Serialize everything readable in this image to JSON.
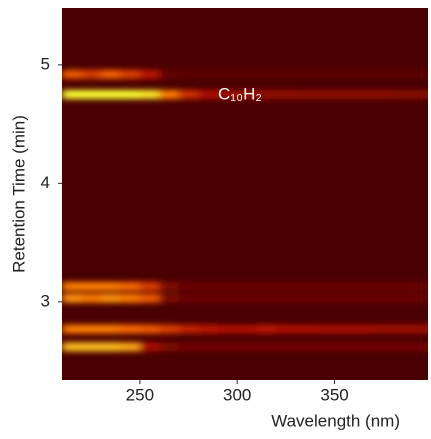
{
  "chart_data": {
    "type": "heatmap",
    "xlabel": "Wavelength (nm)",
    "ylabel": "Retention Time (min)",
    "annotation": "C₁₀H₂",
    "xlim": [
      210,
      398
    ],
    "ylim": [
      2.34,
      5.48
    ],
    "xticks": [
      250,
      300,
      350
    ],
    "yticks": [
      3,
      4,
      5
    ],
    "background": "#4a0000",
    "colormap": [
      "#4a0000",
      "#b81000",
      "#ff7000",
      "#ffff30"
    ],
    "x": [
      215,
      225,
      235,
      245,
      255,
      265,
      275,
      285,
      295,
      305,
      315,
      325,
      335,
      345,
      355,
      365,
      375,
      385,
      395
    ],
    "y": [
      4.92,
      4.75,
      3.13,
      3.03,
      2.77,
      2.62
    ],
    "z": [
      [
        0.6,
        0.5,
        0.62,
        0.5,
        0.35,
        0.08,
        0.05,
        0.05,
        0.05,
        0.05,
        0.05,
        0.05,
        0.05,
        0.05,
        0.05,
        0.05,
        0.05,
        0.05,
        0.05
      ],
      [
        1,
        1,
        1,
        1,
        0.95,
        0.7,
        0.45,
        0.3,
        0.25,
        0.25,
        0.22,
        0.22,
        0.2,
        0.2,
        0.2,
        0.2,
        0.2,
        0.18,
        0.18
      ],
      [
        0.7,
        0.7,
        0.7,
        0.65,
        0.5,
        0.15,
        0.1,
        0.1,
        0.1,
        0.1,
        0.1,
        0.1,
        0.1,
        0.1,
        0.1,
        0.1,
        0.1,
        0.1,
        0.1
      ],
      [
        0.75,
        0.7,
        0.75,
        0.7,
        0.6,
        0.15,
        0.1,
        0.1,
        0.1,
        0.1,
        0.1,
        0.1,
        0.1,
        0.1,
        0.1,
        0.1,
        0.1,
        0.1,
        0.1
      ],
      [
        0.7,
        0.7,
        0.7,
        0.65,
        0.6,
        0.5,
        0.4,
        0.35,
        0.3,
        0.3,
        0.35,
        0.3,
        0.3,
        0.28,
        0.28,
        0.28,
        0.25,
        0.25,
        0.25
      ],
      [
        0.85,
        0.85,
        0.85,
        0.8,
        0.3,
        0.15,
        0.12,
        0.12,
        0.12,
        0.12,
        0.12,
        0.12,
        0.12,
        0.12,
        0.12,
        0.12,
        0.12,
        0.12,
        0.12
      ]
    ]
  }
}
